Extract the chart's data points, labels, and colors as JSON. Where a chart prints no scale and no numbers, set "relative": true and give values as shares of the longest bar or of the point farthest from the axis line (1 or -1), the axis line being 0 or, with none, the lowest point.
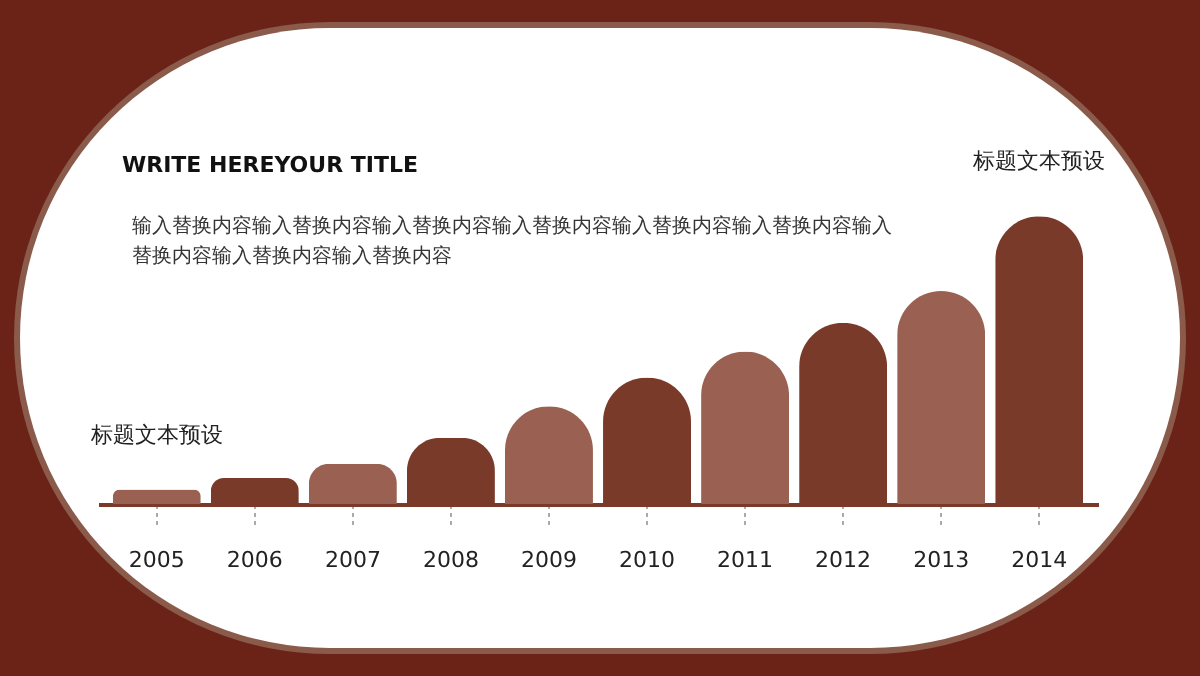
{
  "chart_data": {
    "type": "bar",
    "title": "WRITE HEREYOUR TITLE",
    "subtitle": "输入替换内容输入替换内容输入替换内容输入替换内容输入替换内容输入替换内容输入替换内容输入替换内容输入替换内容",
    "categories": [
      "2005",
      "2006",
      "2007",
      "2008",
      "2009",
      "2010",
      "2011",
      "2012",
      "2013",
      "2014"
    ],
    "values": [
      0.05,
      0.09,
      0.14,
      0.23,
      0.34,
      0.44,
      0.53,
      0.63,
      0.74,
      1
    ],
    "colors": [
      "#9a6152",
      "#7a3a2a",
      "#9a6152",
      "#7a3a2a",
      "#9a6152",
      "#7a3a2a",
      "#9a6152",
      "#7a3a2a",
      "#9a6152",
      "#7a3a2a"
    ],
    "relative": true,
    "annotations": [
      {
        "text": "标题文本预设",
        "x": "2005",
        "y": 0.05
      },
      {
        "text": "标题文本预设",
        "x": "2014",
        "y": 1
      }
    ]
  }
}
